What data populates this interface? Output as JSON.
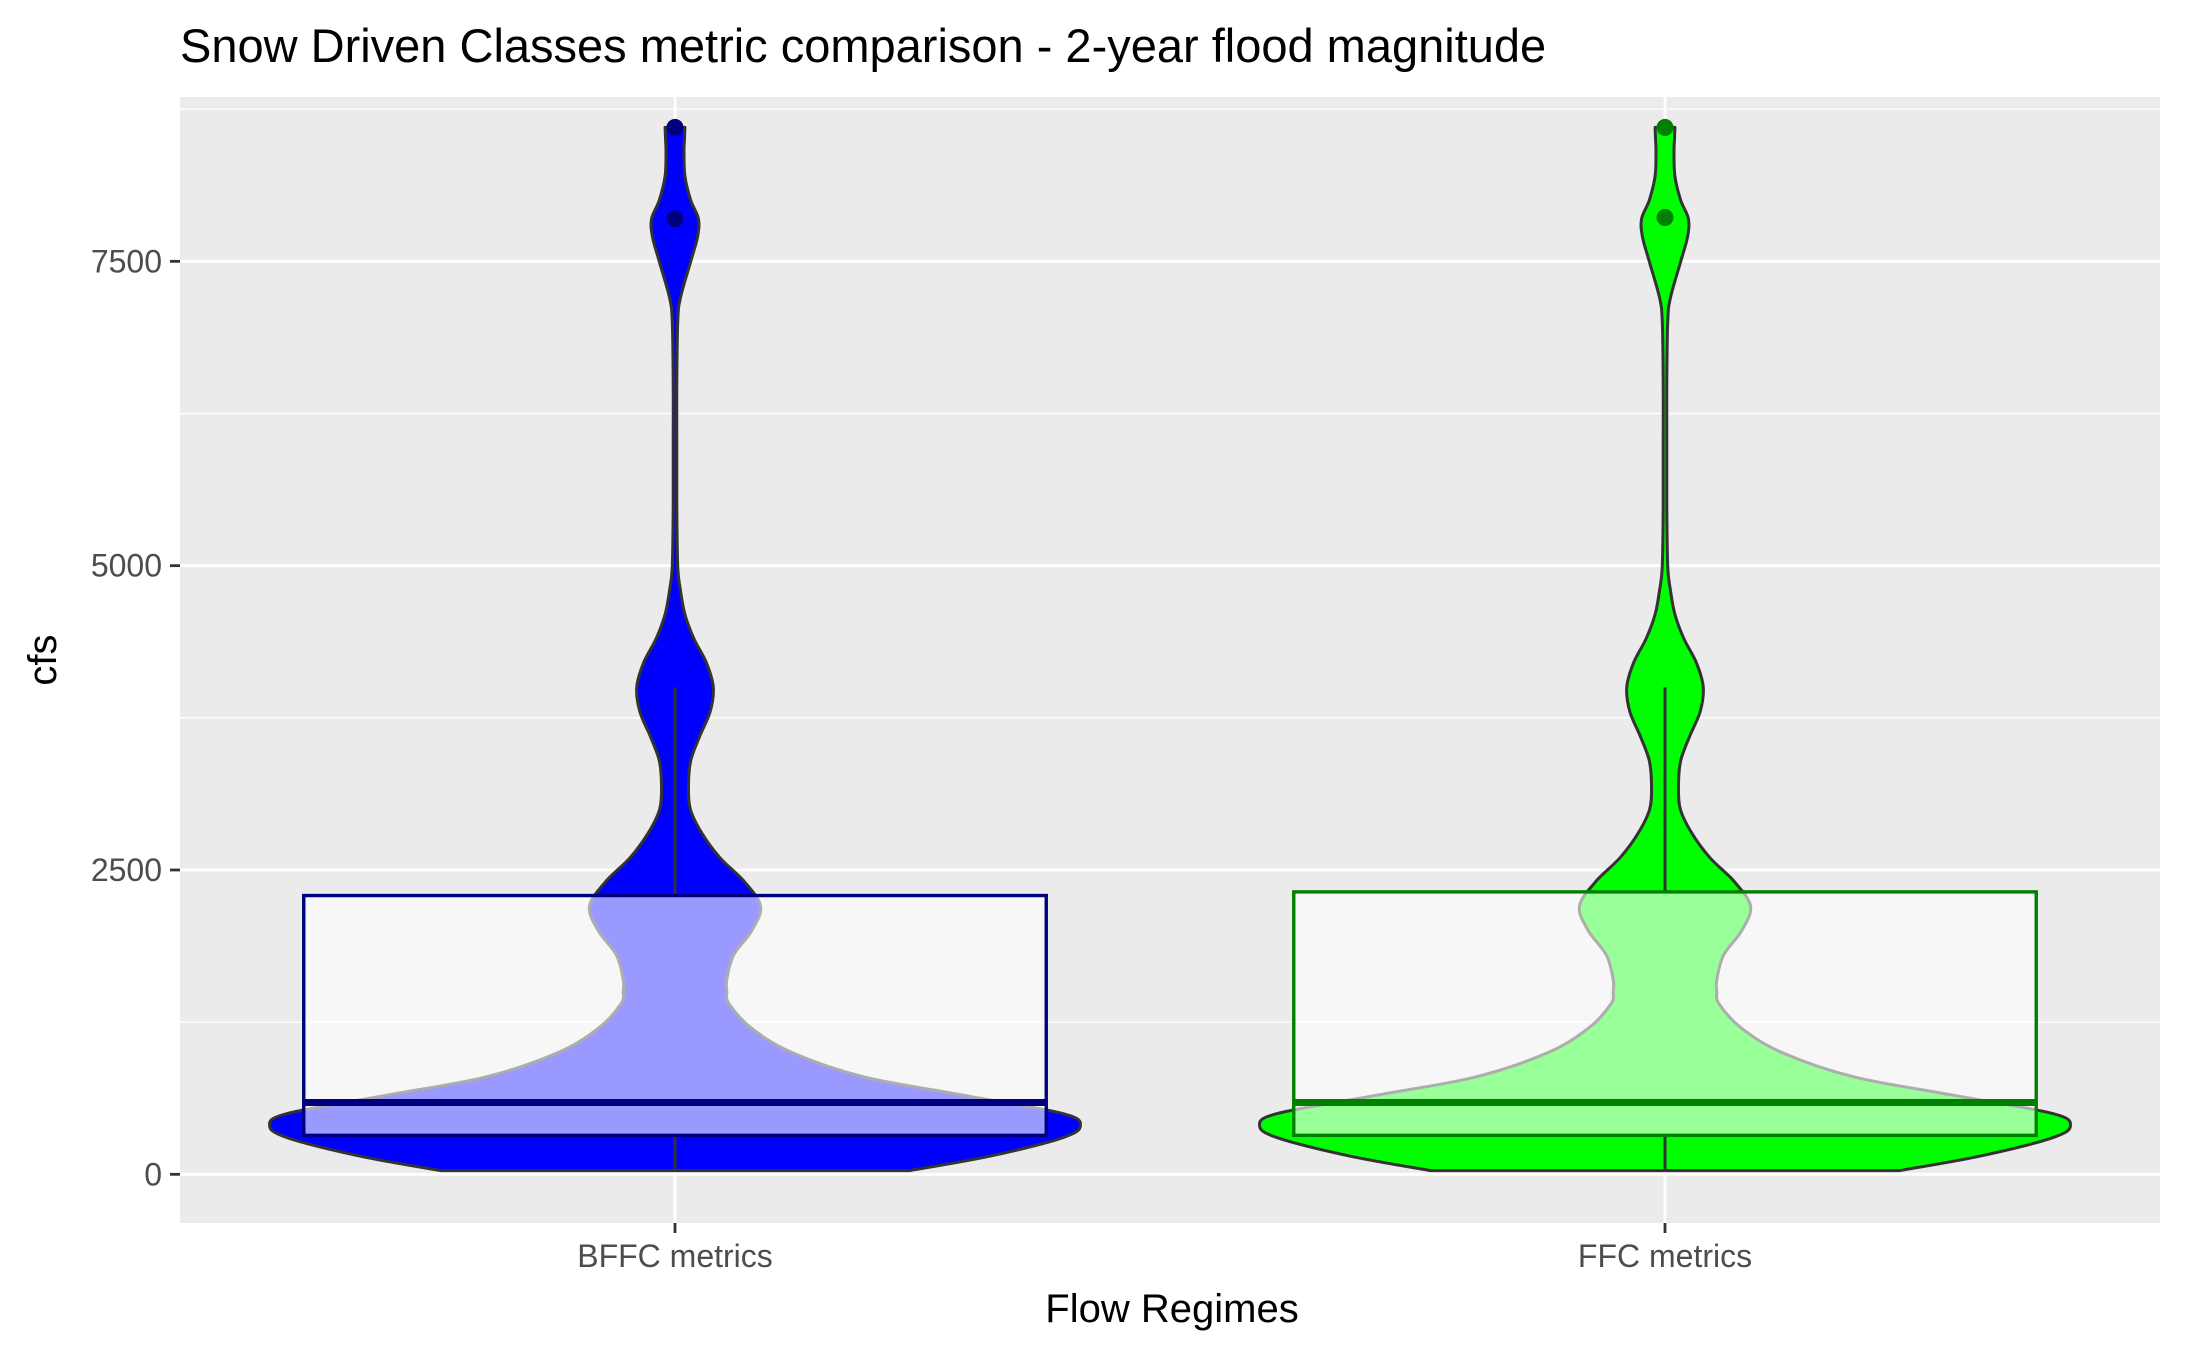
{
  "chart_data": {
    "type": "violin",
    "title": "Snow Driven Classes metric comparison - 2-year flood magnitude",
    "xlabel": "Flow Regimes",
    "ylabel": "cfs",
    "ylim": [
      -400,
      8850
    ],
    "yticks": [
      0,
      2500,
      5000,
      7500
    ],
    "ytick_labels": [
      "0",
      "2500",
      "5000",
      "7500"
    ],
    "grid": true,
    "legend": "none",
    "categories": [
      "BFFC metrics",
      "FFC metrics"
    ],
    "series": [
      {
        "fill": "#0000ff",
        "box_color": "#00007f",
        "whisker_color": "#333333",
        "box": {
          "whisker_low": 30,
          "q1": 320,
          "median": 590,
          "q3": 2290,
          "whisker_high": 4000
        },
        "outliers": [
          7850,
          8600
        ],
        "density": [
          [
            30,
            0.52
          ],
          [
            150,
            0.7
          ],
          [
            300,
            0.86
          ],
          [
            400,
            0.9
          ],
          [
            500,
            0.86
          ],
          [
            650,
            0.64
          ],
          [
            800,
            0.42
          ],
          [
            1000,
            0.26
          ],
          [
            1200,
            0.17
          ],
          [
            1400,
            0.12
          ],
          [
            1500,
            0.115
          ],
          [
            1600,
            0.115
          ],
          [
            1800,
            0.13
          ],
          [
            2000,
            0.17
          ],
          [
            2200,
            0.19
          ],
          [
            2400,
            0.155
          ],
          [
            2600,
            0.1
          ],
          [
            2800,
            0.06
          ],
          [
            3000,
            0.034
          ],
          [
            3200,
            0.03
          ],
          [
            3400,
            0.035
          ],
          [
            3600,
            0.055
          ],
          [
            3800,
            0.078
          ],
          [
            4000,
            0.085
          ],
          [
            4200,
            0.07
          ],
          [
            4400,
            0.042
          ],
          [
            4600,
            0.022
          ],
          [
            4800,
            0.012
          ],
          [
            5000,
            0.006
          ],
          [
            5500,
            0.004
          ],
          [
            6000,
            0.004
          ],
          [
            6500,
            0.004
          ],
          [
            7000,
            0.006
          ],
          [
            7200,
            0.012
          ],
          [
            7500,
            0.035
          ],
          [
            7700,
            0.05
          ],
          [
            7850,
            0.052
          ],
          [
            8000,
            0.035
          ],
          [
            8200,
            0.022
          ],
          [
            8400,
            0.02
          ],
          [
            8500,
            0.021
          ],
          [
            8600,
            0.022
          ]
        ]
      },
      {
        "fill": "#00ff00",
        "box_color": "#007f00",
        "whisker_color": "#333333",
        "box": {
          "whisker_low": 30,
          "q1": 320,
          "median": 590,
          "q3": 2320,
          "whisker_high": 4000
        },
        "outliers": [
          7860,
          8600
        ],
        "density": [
          [
            30,
            0.52
          ],
          [
            150,
            0.7
          ],
          [
            300,
            0.86
          ],
          [
            400,
            0.9
          ],
          [
            500,
            0.86
          ],
          [
            650,
            0.64
          ],
          [
            800,
            0.42
          ],
          [
            1000,
            0.26
          ],
          [
            1200,
            0.17
          ],
          [
            1400,
            0.12
          ],
          [
            1500,
            0.115
          ],
          [
            1600,
            0.115
          ],
          [
            1800,
            0.13
          ],
          [
            2000,
            0.17
          ],
          [
            2200,
            0.19
          ],
          [
            2400,
            0.155
          ],
          [
            2600,
            0.1
          ],
          [
            2800,
            0.06
          ],
          [
            3000,
            0.034
          ],
          [
            3200,
            0.03
          ],
          [
            3400,
            0.035
          ],
          [
            3600,
            0.055
          ],
          [
            3800,
            0.078
          ],
          [
            4000,
            0.085
          ],
          [
            4200,
            0.07
          ],
          [
            4400,
            0.042
          ],
          [
            4600,
            0.022
          ],
          [
            4800,
            0.012
          ],
          [
            5000,
            0.006
          ],
          [
            5500,
            0.004
          ],
          [
            6000,
            0.004
          ],
          [
            6500,
            0.004
          ],
          [
            7000,
            0.006
          ],
          [
            7200,
            0.012
          ],
          [
            7500,
            0.035
          ],
          [
            7700,
            0.05
          ],
          [
            7850,
            0.052
          ],
          [
            8000,
            0.035
          ],
          [
            8200,
            0.022
          ],
          [
            8400,
            0.02
          ],
          [
            8500,
            0.021
          ],
          [
            8600,
            0.022
          ]
        ]
      }
    ]
  },
  "colors": {
    "panel_background": "#ebebeb",
    "grid": "#ffffff",
    "box_fill": "#ffffff",
    "box_alpha": 0.6,
    "outline": "#333333"
  }
}
